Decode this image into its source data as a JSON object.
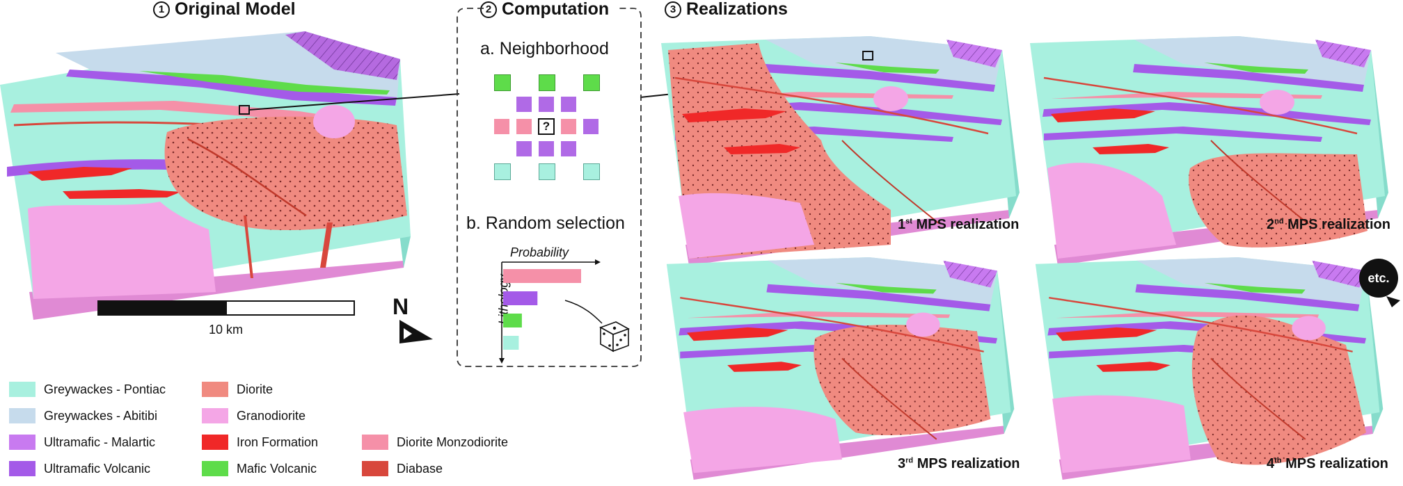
{
  "colors": {
    "greywacke_pontiac": "#a8f0df",
    "greywacke_abitibi": "#c6dbec",
    "ultramafic_malartic": "#c87af0",
    "ultramafic_volcanic": "#a45ae8",
    "diorite": "#f08a80",
    "granodiorite": "#f4a6e6",
    "iron_formation": "#f02828",
    "mafic_volcanic": "#5edc4a",
    "diorite_monzodiorite": "#f590a8",
    "diabase": "#d8473c"
  },
  "sections": {
    "original": {
      "number": "1",
      "title": "Original Model"
    },
    "computation": {
      "number": "2",
      "title": "Computation"
    },
    "realizations": {
      "number": "3",
      "title": "Realizations"
    }
  },
  "computation": {
    "neighborhood_label": "a. Neighborhood",
    "unknown_symbol": "?",
    "random_label": "b. Random selection",
    "probability_axis": "Probability",
    "lithology_axis": "Lithology",
    "bar_probabilities": [
      1.0,
      0.44,
      0.24,
      0.2
    ]
  },
  "scale": {
    "label": "10 km"
  },
  "north": {
    "label": "N"
  },
  "etc_label": "etc.",
  "realization_labels": [
    {
      "ord": "1",
      "suffix": "st",
      "text": "MPS realization"
    },
    {
      "ord": "2",
      "suffix": "nd",
      "text": "MPS realization"
    },
    {
      "ord": "3",
      "suffix": "rd",
      "text": "MPS realization"
    },
    {
      "ord": "4",
      "suffix": "th",
      "text": "MPS realization"
    }
  ],
  "legend": [
    {
      "label": "Greywackes - Pontiac",
      "color": "#a8f0df"
    },
    {
      "label": "Greywackes - Abitibi",
      "color": "#c6dbec"
    },
    {
      "label": "Ultramafic - Malartic",
      "color": "#c87af0"
    },
    {
      "label": "Ultramafic Volcanic",
      "color": "#a45ae8"
    },
    {
      "label": "Diorite",
      "color": "#f08a80"
    },
    {
      "label": "Granodiorite",
      "color": "#f4a6e6"
    },
    {
      "label": "Iron Formation",
      "color": "#f02828"
    },
    {
      "label": "Mafic Volcanic",
      "color": "#5edc4a"
    },
    {
      "label": "Diorite Monzodiorite",
      "color": "#f590a8"
    },
    {
      "label": "Diabase",
      "color": "#d8473c"
    }
  ]
}
